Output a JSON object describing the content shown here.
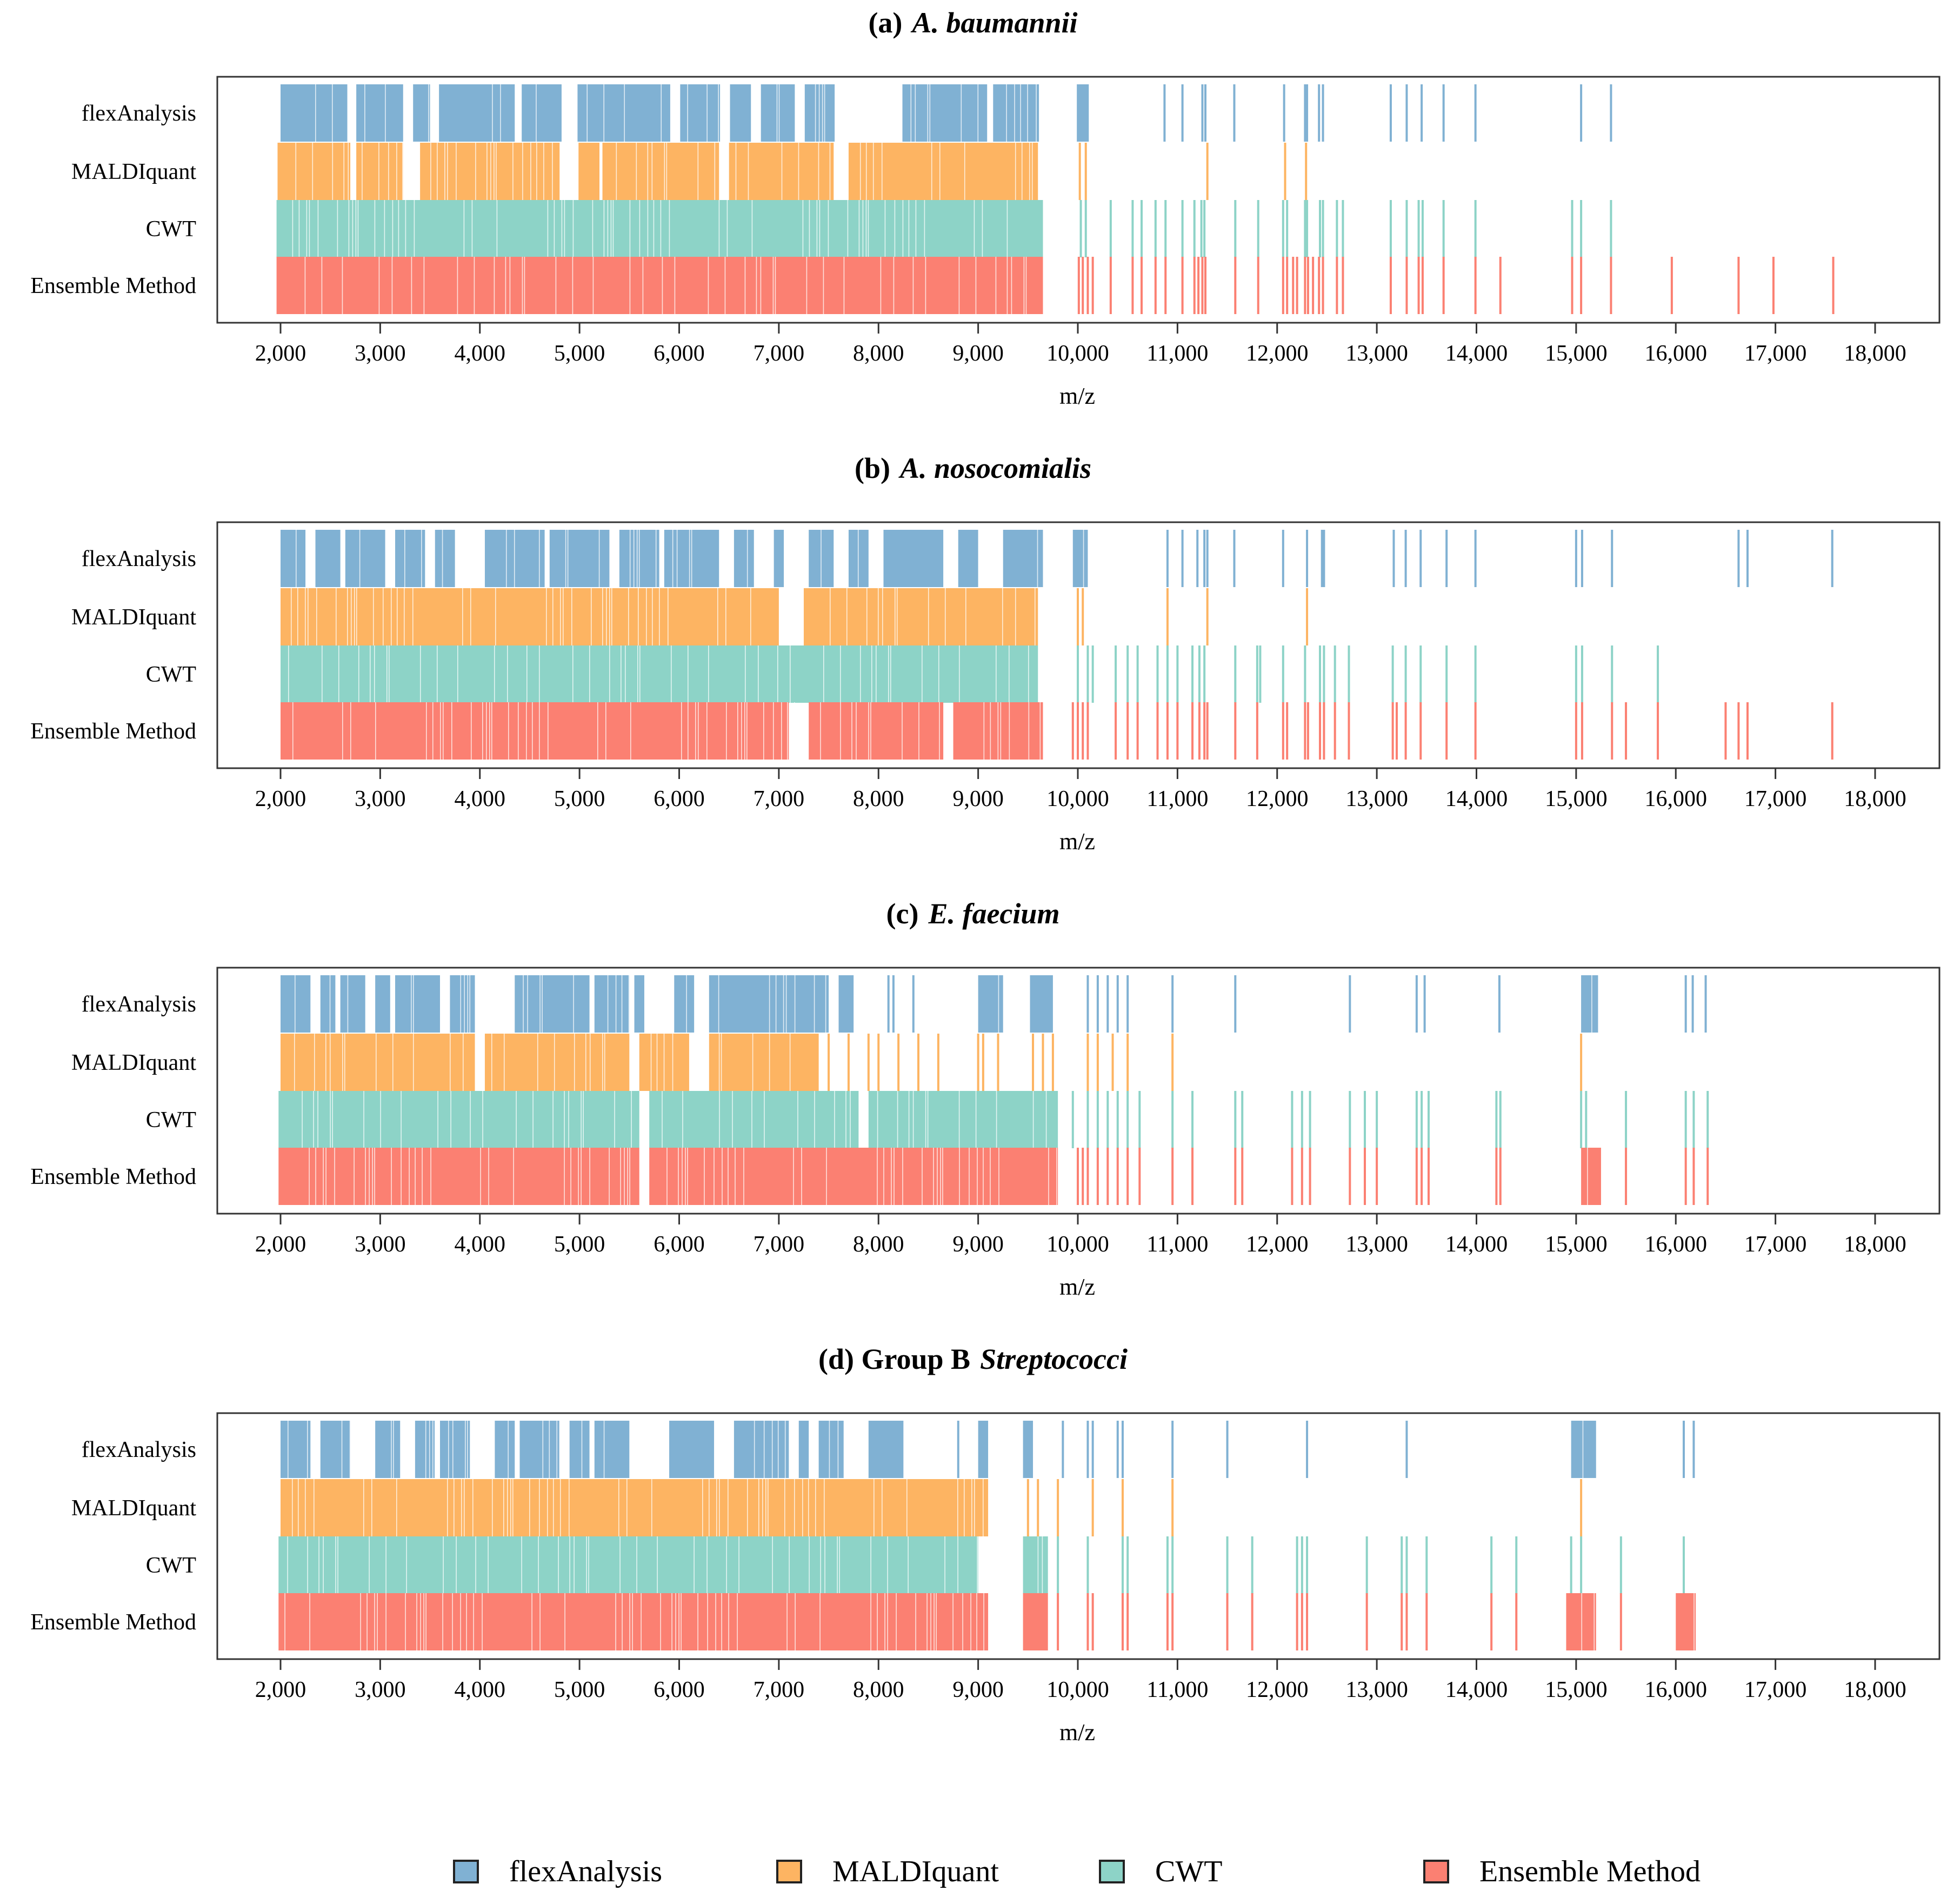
{
  "chart_data": {
    "type": "event-strip",
    "xlabel": "m/z",
    "xlim": [
      1400,
      18700
    ],
    "xticks": [
      2000,
      3000,
      4000,
      5000,
      6000,
      7000,
      8000,
      9000,
      10000,
      11000,
      12000,
      13000,
      14000,
      15000,
      16000,
      17000,
      18000
    ],
    "xtick_labels": [
      "2,000",
      "3,000",
      "4,000",
      "5,000",
      "6,000",
      "7,000",
      "8,000",
      "9,000",
      "10,000",
      "11,000",
      "12,000",
      "13,000",
      "14,000",
      "15,000",
      "16,000",
      "17,000",
      "18,000"
    ],
    "methods": [
      "flexAnalysis",
      "MALDIquant",
      "CWT",
      "Ensemble Method"
    ],
    "colors": {
      "flexAnalysis": "#80B1D3",
      "MALDIquant": "#FDB462",
      "CWT": "#8DD3C7",
      "Ensemble Method": "#FB8072"
    },
    "legend": {
      "position": "bottom",
      "entries": [
        "flexAnalysis",
        "MALDIquant",
        "CWT",
        "Ensemble Method"
      ]
    },
    "panels": [
      {
        "label": "(a)",
        "title": "A. baumannii",
        "series": [
          {
            "name": "flexAnalysis",
            "segments": [
              [
                2000,
                2670
              ],
              [
                2760,
                3230
              ],
              [
                3330,
                3500
              ],
              [
                3590,
                4350
              ],
              [
                4420,
                4820
              ],
              [
                4980,
                5910
              ],
              [
                6010,
                6410
              ],
              [
                6510,
                6720
              ],
              [
                6820,
                7160
              ],
              [
                7260,
                7560
              ],
              [
                8240,
                9090
              ],
              [
                9150,
                9610
              ],
              [
                9990,
                10110
              ]
            ],
            "peaks": [
              10870,
              11050,
              11250,
              11280,
              11570,
              12070,
              12280,
              12300,
              12420,
              12460,
              13140,
              13300,
              13450,
              13670,
              13990,
              15050,
              15350
            ]
          },
          {
            "name": "MALDIquant",
            "segments": [
              [
                1970,
                2700
              ],
              [
                2760,
                3230
              ],
              [
                3400,
                4800
              ],
              [
                4990,
                5200
              ],
              [
                5230,
                6400
              ],
              [
                6500,
                7550
              ],
              [
                7700,
                9600
              ]
            ],
            "peaks": [
              10020,
              10080,
              11300,
              12080,
              12290
            ]
          },
          {
            "name": "CWT",
            "segments": [
              [
                1960,
                9650
              ]
            ],
            "peaks": [
              10030,
              10080,
              10330,
              10550,
              10640,
              10780,
              10880,
              11050,
              11170,
              11240,
              11270,
              11580,
              11810,
              12060,
              12100,
              12280,
              12300,
              12430,
              12460,
              12600,
              12660,
              13140,
              13300,
              13420,
              13460,
              13670,
              13990,
              14960,
              15050,
              15350
            ]
          },
          {
            "name": "Ensemble Method",
            "segments": [
              [
                1960,
                9650
              ]
            ],
            "peaks": [
              10010,
              10050,
              10100,
              10150,
              10330,
              10550,
              10640,
              10780,
              10880,
              11050,
              11170,
              11210,
              11250,
              11280,
              11580,
              11810,
              12060,
              12100,
              12160,
              12200,
              12280,
              12310,
              12360,
              12420,
              12460,
              12600,
              12660,
              13140,
              13300,
              13420,
              13460,
              13670,
              13990,
              14240,
              14960,
              15050,
              15350,
              15960,
              16630,
              16980,
              17580
            ]
          }
        ]
      },
      {
        "label": "(b)",
        "title": "A. nosocomialis",
        "series": [
          {
            "name": "flexAnalysis",
            "segments": [
              [
                2000,
                2250
              ],
              [
                2350,
                2600
              ],
              [
                2650,
                3050
              ],
              [
                3150,
                3450
              ],
              [
                3550,
                3750
              ],
              [
                4050,
                4650
              ],
              [
                4700,
                5300
              ],
              [
                5400,
                5800
              ],
              [
                5850,
                6400
              ],
              [
                6550,
                6750
              ],
              [
                6950,
                7050
              ],
              [
                7300,
                7550
              ],
              [
                7700,
                7900
              ],
              [
                8050,
                8650
              ],
              [
                8800,
                9000
              ],
              [
                9250,
                9650
              ],
              [
                9950,
                10100
              ]
            ],
            "peaks": [
              10900,
              11050,
              11200,
              11270,
              11300,
              11570,
              12060,
              12300,
              12450,
              12470,
              13170,
              13290,
              13440,
              13700,
              13990,
              15000,
              15060,
              15360,
              16630,
              16720,
              17570
            ]
          },
          {
            "name": "MALDIquant",
            "segments": [
              [
                2000,
                7000
              ],
              [
                7250,
                9600
              ]
            ],
            "peaks": [
              10000,
              10050,
              10900,
              11300,
              12300
            ]
          },
          {
            "name": "CWT",
            "segments": [
              [
                2000,
                9600
              ]
            ],
            "peaks": [
              10000,
              10100,
              10150,
              10380,
              10500,
              10600,
              10800,
              10900,
              11000,
              11150,
              11220,
              11270,
              11580,
              11800,
              11830,
              12060,
              12280,
              12430,
              12470,
              12580,
              12720,
              13160,
              13290,
              13440,
              13700,
              13990,
              15000,
              15060,
              15360,
              15820
            ]
          },
          {
            "name": "Ensemble Method",
            "segments": [
              [
                2000,
                7100
              ],
              [
                7300,
                8650
              ],
              [
                8750,
                9650
              ]
            ],
            "peaks": [
              9950,
              10000,
              10050,
              10100,
              10380,
              10500,
              10600,
              10800,
              10900,
              11000,
              11150,
              11220,
              11270,
              11300,
              11580,
              11800,
              12060,
              12100,
              12280,
              12310,
              12430,
              12470,
              12580,
              12720,
              13160,
              13200,
              13290,
              13440,
              13700,
              13990,
              15000,
              15060,
              15360,
              15500,
              15820,
              16500,
              16630,
              16720,
              17570
            ]
          }
        ]
      },
      {
        "label": "(c)",
        "title": "E. faecium",
        "series": [
          {
            "name": "flexAnalysis",
            "segments": [
              [
                2000,
                2300
              ],
              [
                2400,
                2550
              ],
              [
                2600,
                2850
              ],
              [
                2950,
                3100
              ],
              [
                3150,
                3600
              ],
              [
                3700,
                3950
              ],
              [
                4350,
                5100
              ],
              [
                5150,
                5500
              ],
              [
                5550,
                5650
              ],
              [
                5950,
                6150
              ],
              [
                6300,
                7500
              ],
              [
                7600,
                7750
              ],
              [
                9000,
                9250
              ],
              [
                9520,
                9750
              ],
              [
                15050,
                15220
              ]
            ],
            "peaks": [
              8100,
              8150,
              8350,
              10100,
              10200,
              10300,
              10400,
              10500,
              10950,
              11580,
              12730,
              13400,
              13480,
              14230,
              16100,
              16170,
              16300
            ]
          },
          {
            "name": "MALDIquant",
            "segments": [
              [
                2000,
                3950
              ],
              [
                4050,
                5500
              ],
              [
                5600,
                6100
              ],
              [
                6300,
                7400
              ]
            ],
            "peaks": [
              7500,
              7700,
              7900,
              8000,
              8200,
              8400,
              8600,
              9000,
              9050,
              9200,
              9550,
              9650,
              9750,
              10100,
              10200,
              10350,
              10500,
              10950,
              15050
            ]
          },
          {
            "name": "CWT",
            "segments": [
              [
                1980,
                5600
              ],
              [
                5700,
                7800
              ],
              [
                7900,
                9800
              ]
            ],
            "peaks": [
              9950,
              10100,
              10200,
              10300,
              10400,
              10500,
              10620,
              10950,
              11150,
              11580,
              11650,
              12150,
              12250,
              12330,
              12730,
              12880,
              13000,
              13400,
              13450,
              13520,
              14200,
              14240,
              15050,
              15100,
              15500,
              16100,
              16180,
              16320
            ]
          },
          {
            "name": "Ensemble Method",
            "segments": [
              [
                1980,
                5600
              ],
              [
                5700,
                9800
              ],
              [
                15050,
                15250
              ]
            ],
            "peaks": [
              10000,
              10050,
              10100,
              10200,
              10300,
              10400,
              10500,
              10620,
              10950,
              11150,
              11580,
              11650,
              12150,
              12250,
              12330,
              12730,
              12880,
              13000,
              13400,
              13450,
              13520,
              14200,
              14240,
              15500,
              16100,
              16180,
              16320
            ]
          }
        ]
      },
      {
        "label": "(d) Group B",
        "title": "Streptococci",
        "series": [
          {
            "name": "flexAnalysis",
            "segments": [
              [
                2000,
                2300
              ],
              [
                2400,
                2700
              ],
              [
                2950,
                3200
              ],
              [
                3350,
                3550
              ],
              [
                3600,
                3900
              ],
              [
                4150,
                4350
              ],
              [
                4400,
                4800
              ],
              [
                4900,
                5100
              ],
              [
                5150,
                5500
              ],
              [
                5900,
                6350
              ],
              [
                6550,
                7100
              ],
              [
                7200,
                7300
              ],
              [
                7400,
                7650
              ],
              [
                7900,
                8250
              ],
              [
                9000,
                9100
              ],
              [
                9450,
                9550
              ],
              [
                14950,
                15200
              ]
            ],
            "peaks": [
              8800,
              9850,
              10100,
              10150,
              10400,
              10450,
              10950,
              11500,
              12300,
              13300,
              16080,
              16180
            ]
          },
          {
            "name": "MALDIquant",
            "segments": [
              [
                2000,
                9100
              ]
            ],
            "peaks": [
              9500,
              9600,
              9800,
              10150,
              10450,
              10950,
              15050
            ]
          },
          {
            "name": "CWT",
            "segments": [
              [
                1980,
                9000
              ],
              [
                9450,
                9700
              ]
            ],
            "peaks": [
              9800,
              10100,
              10450,
              10500,
              10900,
              10950,
              11500,
              11750,
              12200,
              12250,
              12300,
              12900,
              13250,
              13300,
              13500,
              14150,
              14400,
              14950,
              15050,
              15450,
              16080
            ]
          },
          {
            "name": "Ensemble Method",
            "segments": [
              [
                1980,
                9100
              ],
              [
                9450,
                9700
              ],
              [
                14900,
                15200
              ],
              [
                16000,
                16200
              ]
            ],
            "peaks": [
              9800,
              10100,
              10150,
              10450,
              10500,
              10900,
              10950,
              11500,
              11750,
              12200,
              12250,
              12300,
              12900,
              13250,
              13300,
              13500,
              14150,
              14400,
              15450
            ]
          }
        ]
      }
    ]
  }
}
